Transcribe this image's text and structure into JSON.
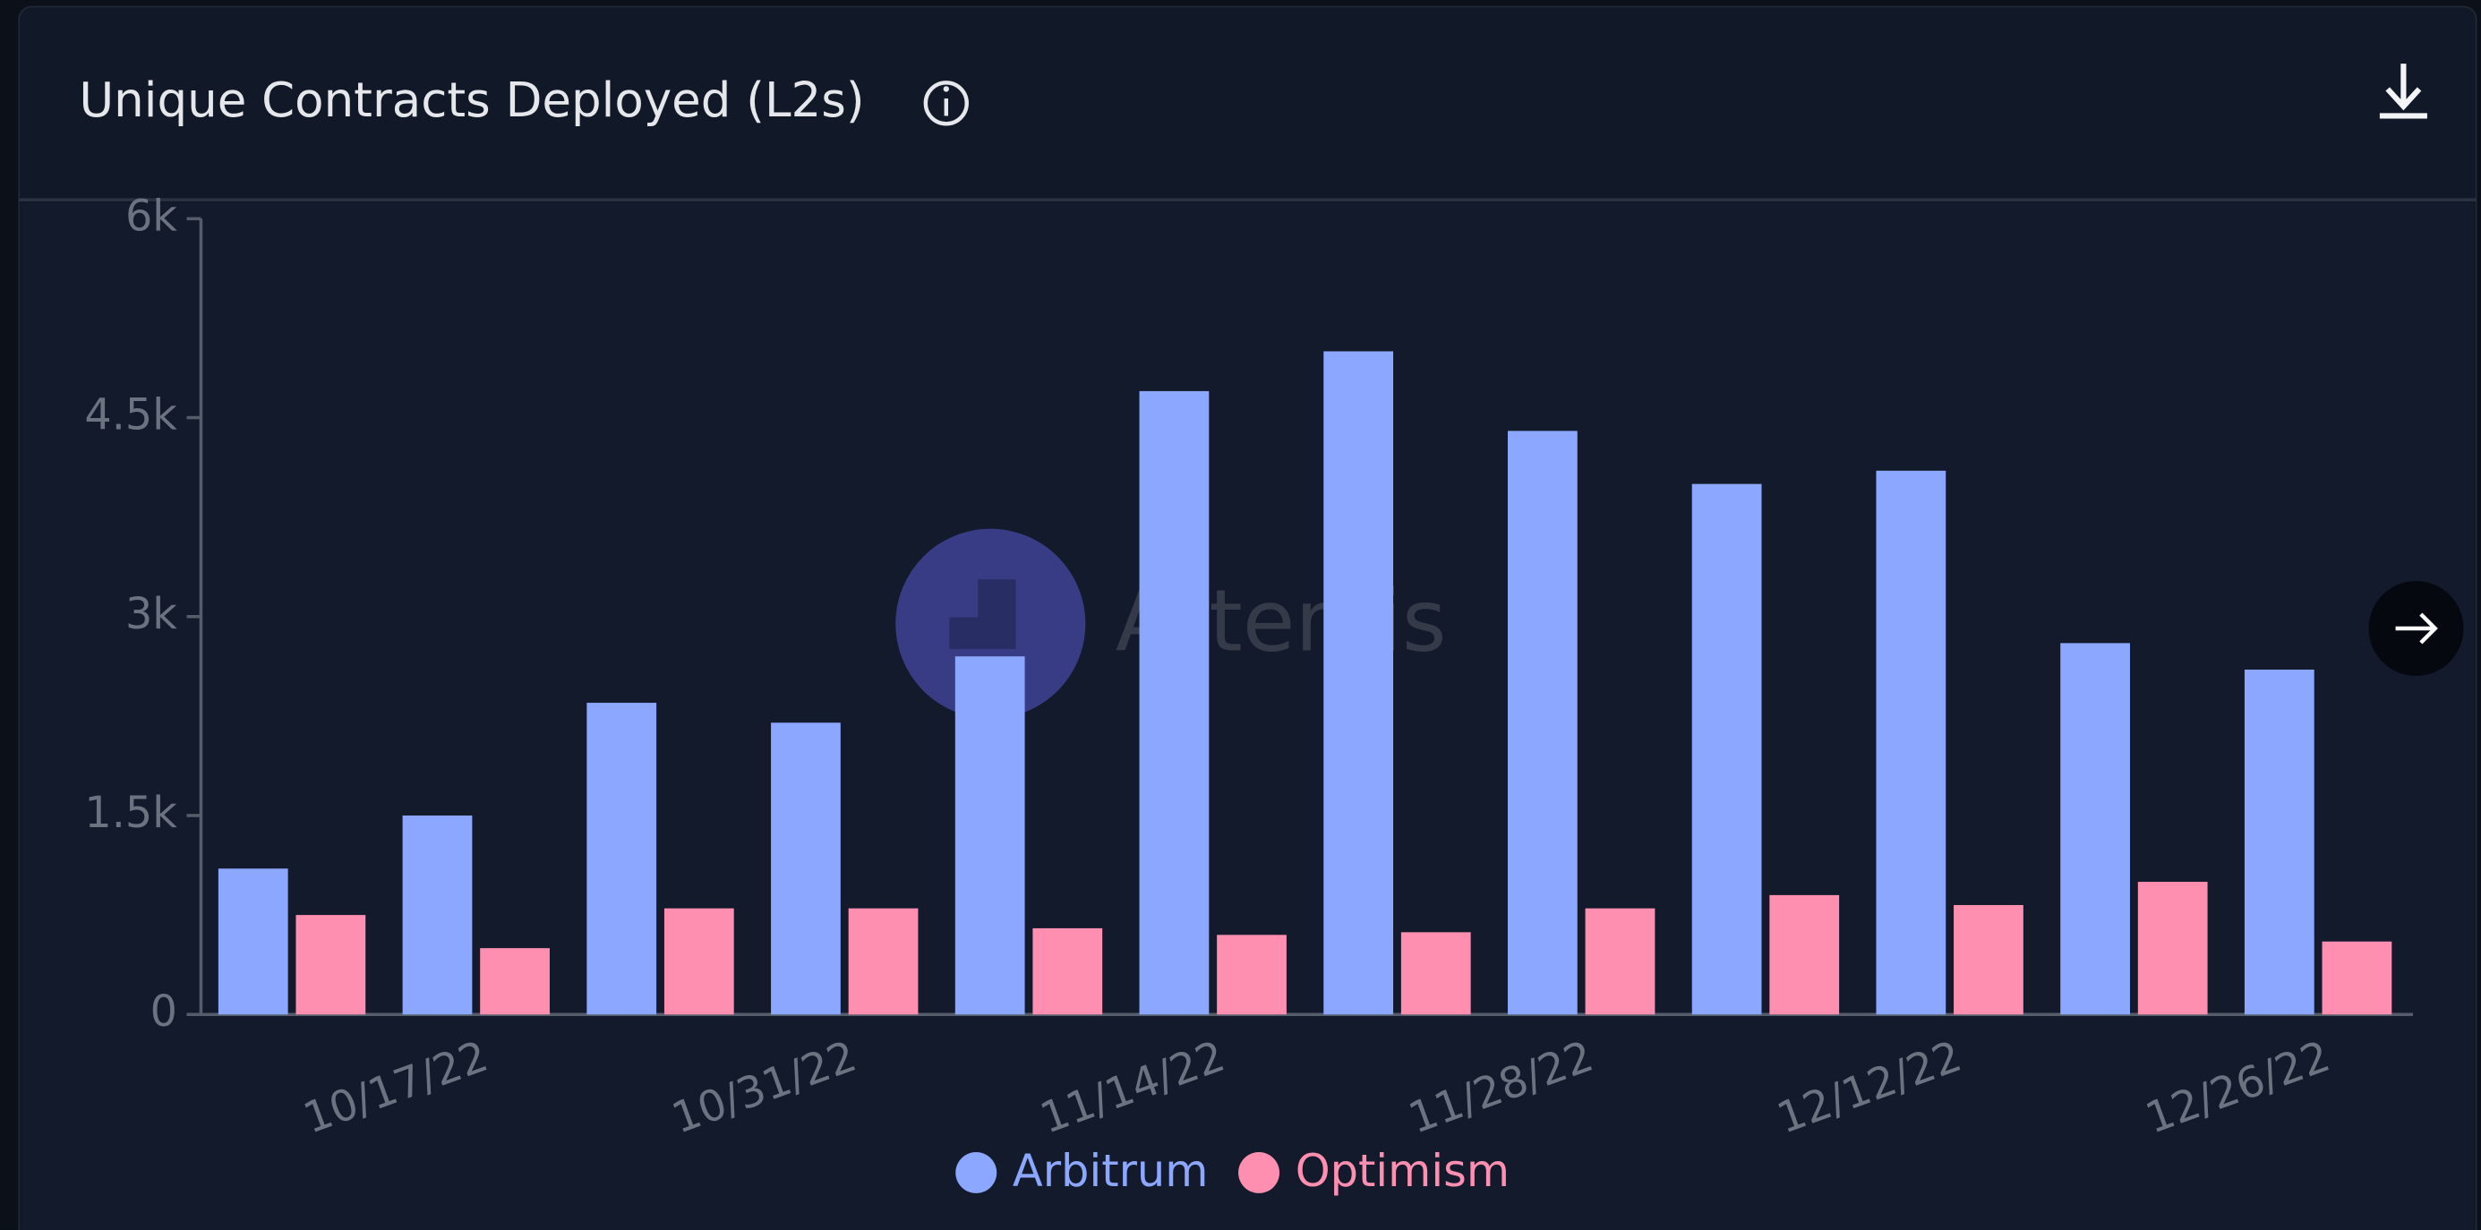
{
  "chart_data": {
    "type": "bar",
    "title": "Unique Contracts Deployed (L2s)",
    "watermark": "Artemis",
    "categories": [
      null,
      "10/17/22",
      null,
      "10/31/22",
      null,
      "11/14/22",
      null,
      "11/28/22",
      null,
      "12/12/22",
      null,
      "12/26/22"
    ],
    "series": [
      {
        "name": "Arbitrum",
        "color": "#8ca7ff",
        "values": [
          1100,
          1500,
          2350,
          2200,
          2700,
          4700,
          5000,
          4400,
          4000,
          4100,
          2800,
          2600
        ]
      },
      {
        "name": "Optimism",
        "color": "#ff8fb1",
        "values": [
          750,
          500,
          800,
          800,
          650,
          600,
          620,
          800,
          900,
          825,
          1000,
          550
        ]
      }
    ],
    "ylim": [
      0,
      6000
    ],
    "yticks": [
      0,
      {
        "value": 1500,
        "label": "1.5k"
      },
      {
        "value": 3000,
        "label": "3k"
      },
      {
        "value": 4500,
        "label": "4.5k"
      },
      {
        "value": 6000,
        "label": "6k"
      }
    ],
    "grid": false
  }
}
